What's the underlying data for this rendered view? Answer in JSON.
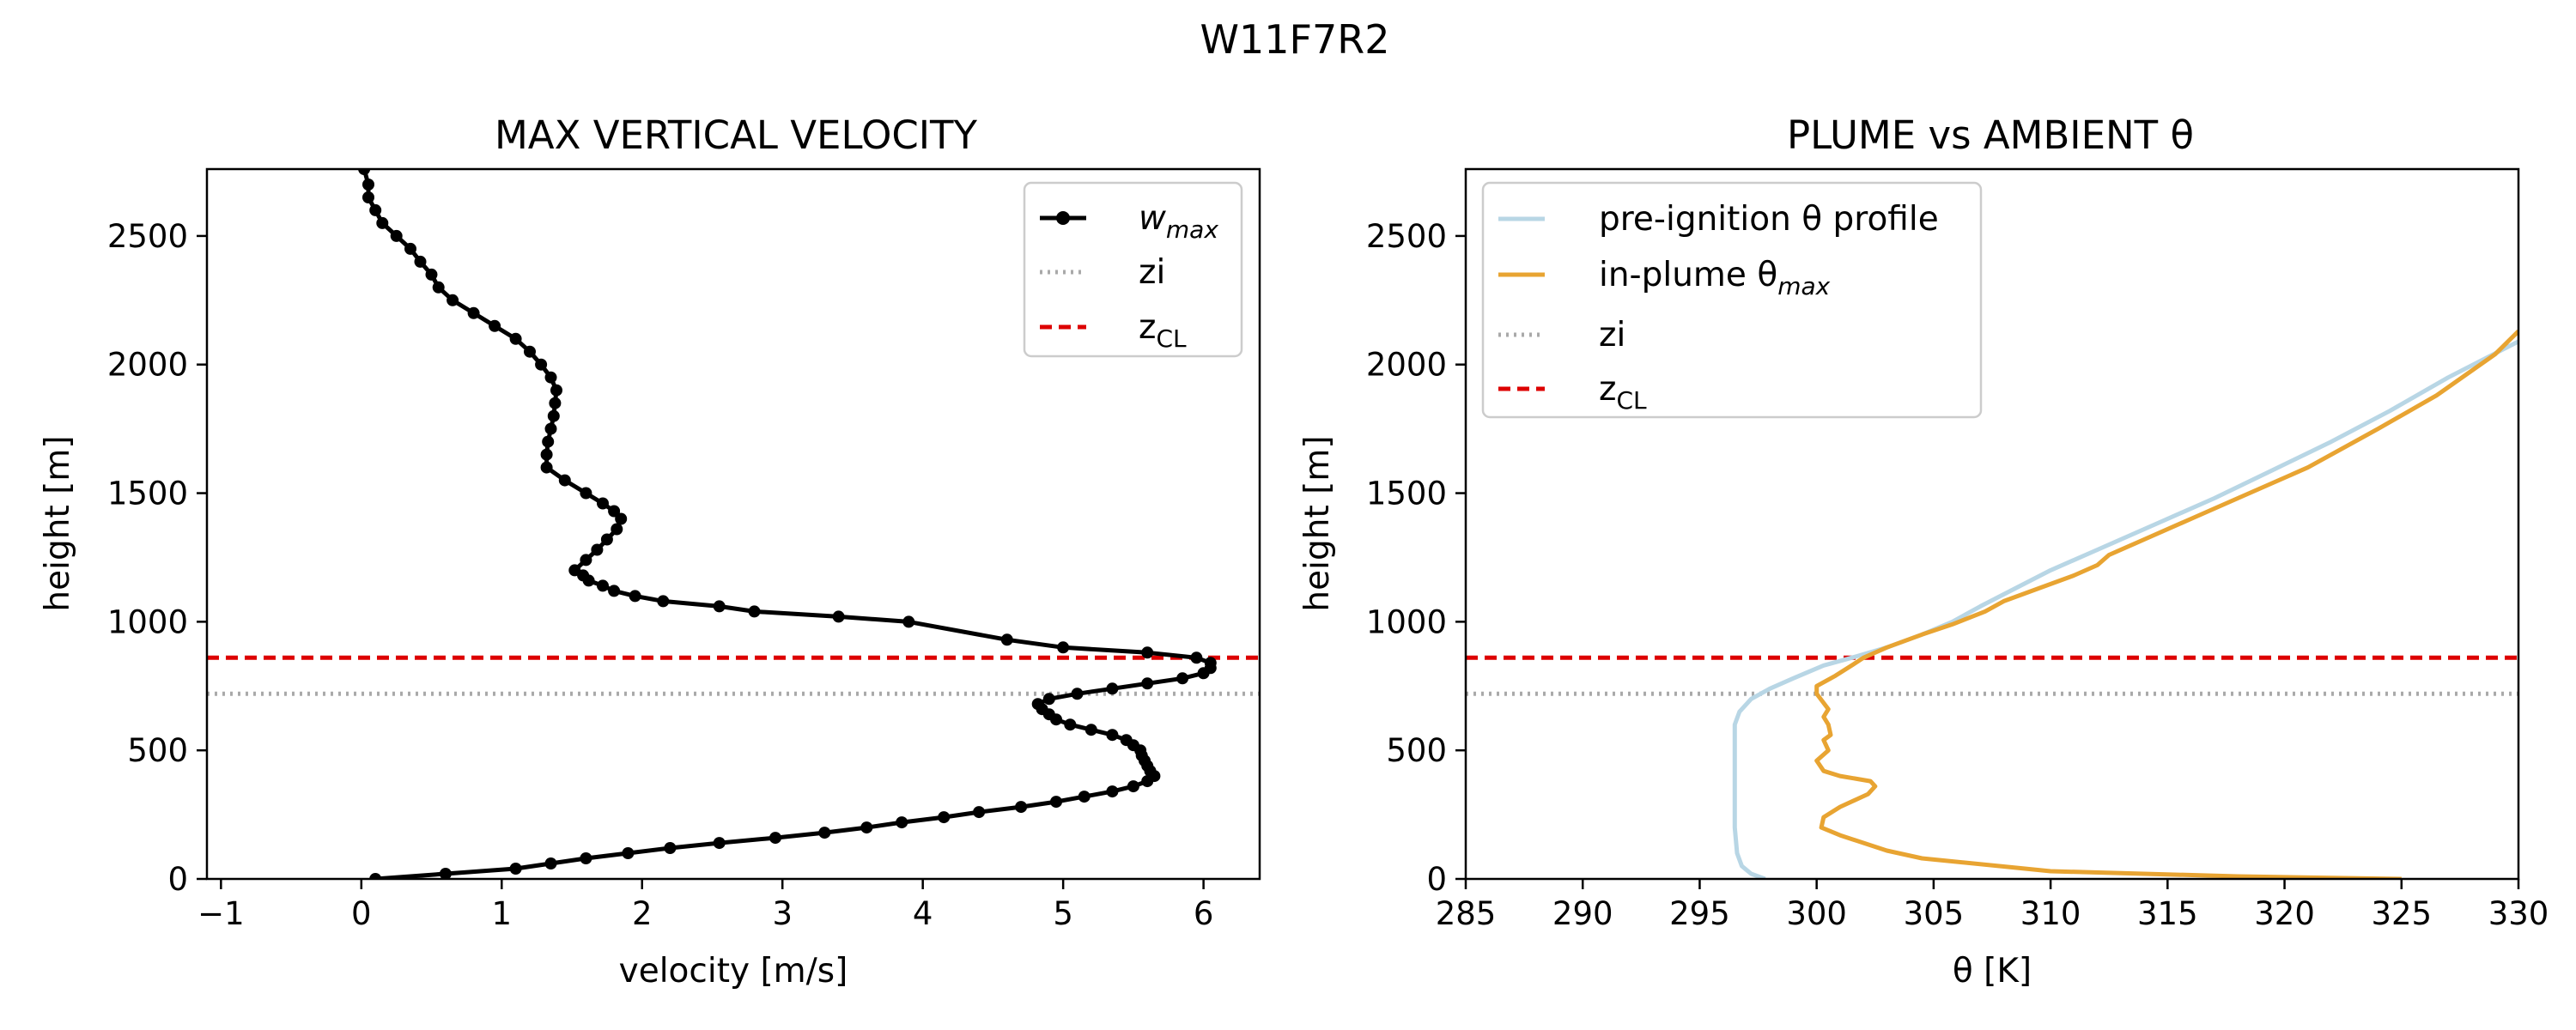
{
  "figure": {
    "suptitle": "W11F7R2"
  },
  "chart_data": [
    {
      "type": "line",
      "title": "MAX VERTICAL VELOCITY",
      "xlabel": "velocity [m/s]",
      "ylabel": "height [m]",
      "xlim": [
        -1.1,
        6.4
      ],
      "ylim": [
        0,
        2760
      ],
      "xticks": [
        "−1",
        "0",
        "1",
        "2",
        "3",
        "4",
        "5",
        "6"
      ],
      "yticks": [
        "0",
        "500",
        "1000",
        "1500",
        "2000",
        "2500"
      ],
      "legend": {
        "placement": "upper right",
        "entries": [
          "w",
          "max",
          "zi",
          "z",
          "CL"
        ]
      },
      "series": [
        {
          "name": "w_max",
          "color": "#000000",
          "marker": "circle",
          "style": "solid",
          "points": [
            [
              0.1,
              0
            ],
            [
              0.6,
              20
            ],
            [
              1.1,
              40
            ],
            [
              1.35,
              60
            ],
            [
              1.6,
              80
            ],
            [
              1.9,
              100
            ],
            [
              2.2,
              120
            ],
            [
              2.55,
              140
            ],
            [
              2.95,
              160
            ],
            [
              3.3,
              180
            ],
            [
              3.6,
              200
            ],
            [
              3.85,
              220
            ],
            [
              4.15,
              240
            ],
            [
              4.4,
              260
            ],
            [
              4.7,
              280
            ],
            [
              4.95,
              300
            ],
            [
              5.15,
              320
            ],
            [
              5.35,
              340
            ],
            [
              5.5,
              360
            ],
            [
              5.6,
              380
            ],
            [
              5.65,
              400
            ],
            [
              5.62,
              420
            ],
            [
              5.6,
              440
            ],
            [
              5.58,
              460
            ],
            [
              5.56,
              480
            ],
            [
              5.55,
              500
            ],
            [
              5.5,
              520
            ],
            [
              5.45,
              540
            ],
            [
              5.35,
              560
            ],
            [
              5.2,
              580
            ],
            [
              5.05,
              600
            ],
            [
              4.95,
              620
            ],
            [
              4.9,
              640
            ],
            [
              4.85,
              660
            ],
            [
              4.82,
              680
            ],
            [
              4.9,
              700
            ],
            [
              5.1,
              720
            ],
            [
              5.35,
              740
            ],
            [
              5.6,
              760
            ],
            [
              5.85,
              780
            ],
            [
              6.0,
              800
            ],
            [
              6.05,
              820
            ],
            [
              6.05,
              840
            ],
            [
              5.95,
              860
            ],
            [
              5.6,
              880
            ],
            [
              5.0,
              900
            ],
            [
              4.6,
              930
            ],
            [
              3.9,
              1000
            ],
            [
              3.4,
              1020
            ],
            [
              2.8,
              1040
            ],
            [
              2.55,
              1060
            ],
            [
              2.15,
              1080
            ],
            [
              1.95,
              1100
            ],
            [
              1.8,
              1120
            ],
            [
              1.72,
              1140
            ],
            [
              1.62,
              1160
            ],
            [
              1.58,
              1180
            ],
            [
              1.52,
              1200
            ],
            [
              1.6,
              1240
            ],
            [
              1.68,
              1280
            ],
            [
              1.75,
              1320
            ],
            [
              1.82,
              1360
            ],
            [
              1.85,
              1400
            ],
            [
              1.8,
              1430
            ],
            [
              1.72,
              1460
            ],
            [
              1.6,
              1500
            ],
            [
              1.45,
              1550
            ],
            [
              1.32,
              1600
            ],
            [
              1.32,
              1650
            ],
            [
              1.33,
              1700
            ],
            [
              1.35,
              1750
            ],
            [
              1.37,
              1800
            ],
            [
              1.38,
              1850
            ],
            [
              1.39,
              1900
            ],
            [
              1.35,
              1950
            ],
            [
              1.28,
              2000
            ],
            [
              1.2,
              2050
            ],
            [
              1.1,
              2100
            ],
            [
              0.95,
              2150
            ],
            [
              0.8,
              2200
            ],
            [
              0.65,
              2250
            ],
            [
              0.55,
              2300
            ],
            [
              0.5,
              2350
            ],
            [
              0.42,
              2400
            ],
            [
              0.35,
              2450
            ],
            [
              0.25,
              2500
            ],
            [
              0.15,
              2550
            ],
            [
              0.1,
              2600
            ],
            [
              0.05,
              2650
            ],
            [
              0.05,
              2700
            ],
            [
              0.02,
              2760
            ]
          ]
        }
      ],
      "reference_lines": [
        {
          "name": "zi",
          "y": 720,
          "color": "#a9a9a9",
          "style": "dotted"
        },
        {
          "name": "z_CL",
          "y": 860,
          "color": "#dd0000",
          "style": "dashed"
        }
      ]
    },
    {
      "type": "line",
      "title": "PLUME vs AMBIENT θ",
      "xlabel": "θ [K]",
      "ylabel": "height [m]",
      "xlim": [
        285,
        330
      ],
      "ylim": [
        0,
        2760
      ],
      "xticks": [
        "285",
        "290",
        "295",
        "300",
        "305",
        "310",
        "315",
        "320",
        "325",
        "330"
      ],
      "yticks": [
        "0",
        "500",
        "1000",
        "1500",
        "2000",
        "2500"
      ],
      "legend": {
        "placement": "upper left",
        "entries": [
          "pre-ignition θ profile",
          "in-plume θ",
          "max",
          "zi",
          "z",
          "CL"
        ]
      },
      "series": [
        {
          "name": "pre-ignition θ profile",
          "color": "#b8d6e5",
          "style": "solid",
          "points": [
            [
              297.8,
              0
            ],
            [
              297.2,
              20
            ],
            [
              296.8,
              50
            ],
            [
              296.6,
              100
            ],
            [
              296.5,
              200
            ],
            [
              296.5,
              400
            ],
            [
              296.5,
              600
            ],
            [
              296.7,
              650
            ],
            [
              297.2,
              700
            ],
            [
              298,
              740
            ],
            [
              299,
              780
            ],
            [
              300.3,
              830
            ],
            [
              301.5,
              860
            ],
            [
              303,
              900
            ],
            [
              304.5,
              950
            ],
            [
              305.8,
              1000
            ],
            [
              307,
              1060
            ],
            [
              308.5,
              1130
            ],
            [
              310,
              1200
            ],
            [
              312,
              1280
            ],
            [
              314.5,
              1380
            ],
            [
              317,
              1480
            ],
            [
              319.5,
              1590
            ],
            [
              322,
              1700
            ],
            [
              324.5,
              1820
            ],
            [
              327,
              1950
            ],
            [
              330,
              2090
            ],
            [
              331,
              2140
            ]
          ]
        },
        {
          "name": "in-plume θ_max",
          "color": "#e8a432",
          "style": "solid",
          "points": [
            [
              325,
              0
            ],
            [
              318,
              10
            ],
            [
              310,
              30
            ],
            [
              304.5,
              80
            ],
            [
              303,
              110
            ],
            [
              301,
              170
            ],
            [
              300.2,
              200
            ],
            [
              300.3,
              240
            ],
            [
              301,
              280
            ],
            [
              302.2,
              330
            ],
            [
              302.5,
              360
            ],
            [
              302.3,
              380
            ],
            [
              301,
              400
            ],
            [
              300.3,
              420
            ],
            [
              300,
              460
            ],
            [
              300.5,
              500
            ],
            [
              300.3,
              540
            ],
            [
              300.6,
              560
            ],
            [
              300.5,
              600
            ],
            [
              300.3,
              630
            ],
            [
              300.5,
              660
            ],
            [
              300,
              720
            ],
            [
              300,
              750
            ],
            [
              300.8,
              790
            ],
            [
              301.5,
              830
            ],
            [
              302,
              860
            ],
            [
              303,
              900
            ],
            [
              304.5,
              950
            ],
            [
              305.8,
              990
            ],
            [
              307.2,
              1040
            ],
            [
              308,
              1080
            ],
            [
              309.5,
              1130
            ],
            [
              311,
              1180
            ],
            [
              312,
              1220
            ],
            [
              312.5,
              1260
            ],
            [
              314,
              1320
            ],
            [
              316,
              1400
            ],
            [
              318,
              1480
            ],
            [
              321,
              1600
            ],
            [
              324,
              1750
            ],
            [
              326.5,
              1880
            ],
            [
              329,
              2040
            ],
            [
              330,
              2130
            ]
          ]
        }
      ],
      "reference_lines": [
        {
          "name": "zi",
          "y": 720,
          "color": "#a9a9a9",
          "style": "dotted"
        },
        {
          "name": "z_CL",
          "y": 860,
          "color": "#dd0000",
          "style": "dashed"
        }
      ]
    }
  ]
}
